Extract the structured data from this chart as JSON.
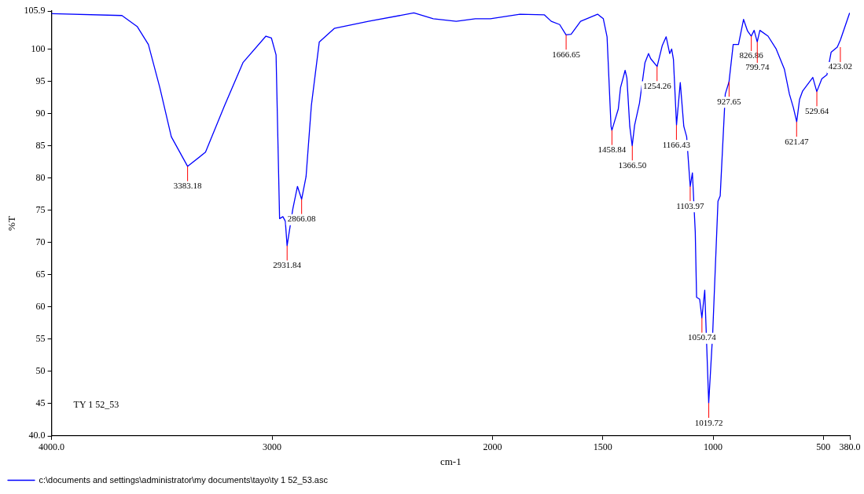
{
  "chart_data": {
    "type": "line",
    "xlabel": "cm-1",
    "ylabel": "%T",
    "xlim": [
      4000,
      380
    ],
    "ylim": [
      40.0,
      105.9
    ],
    "xticks": [
      {
        "value": 4000,
        "label": "4000.0"
      },
      3000,
      2000,
      1500,
      1000,
      500,
      {
        "value": 380,
        "label": "380.0"
      }
    ],
    "yticks": [
      {
        "value": 40,
        "label": "40.0"
      },
      45,
      50,
      55,
      60,
      65,
      70,
      75,
      80,
      85,
      90,
      95,
      100,
      105.9
    ],
    "grid": false,
    "legend": "bottom",
    "marker": "none",
    "line_style": "solid",
    "series": [
      {
        "name": "c:\\documents and settings\\administrator\\my documents\\tayo\\ty 1 52_53.asc",
        "color": "#0000ff",
        "x": [
          4000,
          3681,
          3612,
          3561,
          3509,
          3457,
          3383,
          3302,
          3216,
          3132,
          3028,
          3003,
          2982,
          2966,
          2951,
          2940,
          2932,
          2906,
          2885,
          2866,
          2846,
          2822,
          2786,
          2718,
          2563,
          2357,
          2269,
          2165,
          2078,
          2010,
          1876,
          1765,
          1734,
          1696,
          1667,
          1644,
          1601,
          1524,
          1498,
          1481,
          1463,
          1459,
          1446,
          1430,
          1420,
          1399,
          1391,
          1378,
          1367,
          1356,
          1334,
          1309,
          1293,
          1283,
          1254,
          1231,
          1213,
          1197,
          1188,
          1180,
          1166,
          1149,
          1133,
          1120,
          1104,
          1094,
          1081,
          1075,
          1061,
          1051,
          1038,
          1020,
          1002,
          978,
          968,
          945,
          928,
          909,
          885,
          862,
          844,
          827,
          814,
          800,
          788,
          751,
          714,
          677,
          654,
          636,
          621,
          608,
          594,
          548,
          530,
          507,
          484,
          465,
          437,
          423,
          381
        ],
        "values": [
          105.5,
          105.2,
          103.5,
          100.7,
          94.0,
          86.4,
          81.8,
          84.0,
          91.2,
          97.9,
          102.0,
          101.7,
          99.1,
          73.7,
          74.0,
          73.3,
          69.5,
          75.2,
          78.7,
          76.7,
          80.2,
          91.2,
          101.1,
          103.2,
          104.3,
          105.6,
          104.7,
          104.3,
          104.7,
          104.7,
          105.4,
          105.3,
          104.3,
          103.8,
          102.2,
          102.3,
          104.3,
          105.4,
          104.7,
          101.9,
          88.0,
          87.4,
          88.9,
          90.7,
          94.0,
          96.7,
          95.5,
          88.0,
          85.0,
          88.2,
          91.6,
          97.9,
          99.3,
          98.5,
          97.3,
          100.5,
          101.9,
          99.3,
          100.0,
          98.4,
          88.2,
          94.8,
          88.0,
          86.4,
          78.7,
          80.8,
          71.6,
          61.5,
          61.2,
          58.3,
          62.6,
          45.1,
          55.9,
          76.4,
          77.2,
          93.0,
          94.9,
          100.7,
          100.7,
          104.6,
          102.8,
          102.0,
          102.9,
          101.1,
          102.9,
          102.0,
          100.0,
          96.9,
          93.0,
          90.9,
          88.7,
          92.2,
          93.5,
          95.6,
          93.4,
          95.4,
          96.0,
          99.5,
          100.3,
          101.4,
          105.6
        ]
      }
    ],
    "annotations": [
      {
        "text": "3383.18",
        "x": 3383.18,
        "y": 81.8
      },
      {
        "text": "2931.84",
        "x": 2931.84,
        "y": 69.5
      },
      {
        "text": "2866.08",
        "x": 2866.08,
        "y": 76.7
      },
      {
        "text": "1666.65",
        "x": 1666.65,
        "y": 102.2
      },
      {
        "text": "1458.84",
        "x": 1458.84,
        "y": 87.4
      },
      {
        "text": "1366.50",
        "x": 1366.5,
        "y": 85.0
      },
      {
        "text": "1254.26",
        "x": 1254.26,
        "y": 97.3
      },
      {
        "text": "1166.43",
        "x": 1166.43,
        "y": 88.2
      },
      {
        "text": "1103.97",
        "x": 1103.97,
        "y": 78.7
      },
      {
        "text": "1050.74",
        "x": 1050.74,
        "y": 58.3
      },
      {
        "text": "1019.72",
        "x": 1019.72,
        "y": 45.1
      },
      {
        "text": "927.65",
        "x": 927.65,
        "y": 94.9
      },
      {
        "text": "826.86",
        "x": 826.86,
        "y": 102.0
      },
      {
        "text": "799.74",
        "x": 799.74,
        "y": 101.1
      },
      {
        "text": "621.47",
        "x": 621.47,
        "y": 88.7
      },
      {
        "text": "529.64",
        "x": 529.64,
        "y": 93.4
      },
      {
        "text": "423.02",
        "x": 423.02,
        "y": 100.3
      },
      "TY 1 52_53"
    ]
  }
}
